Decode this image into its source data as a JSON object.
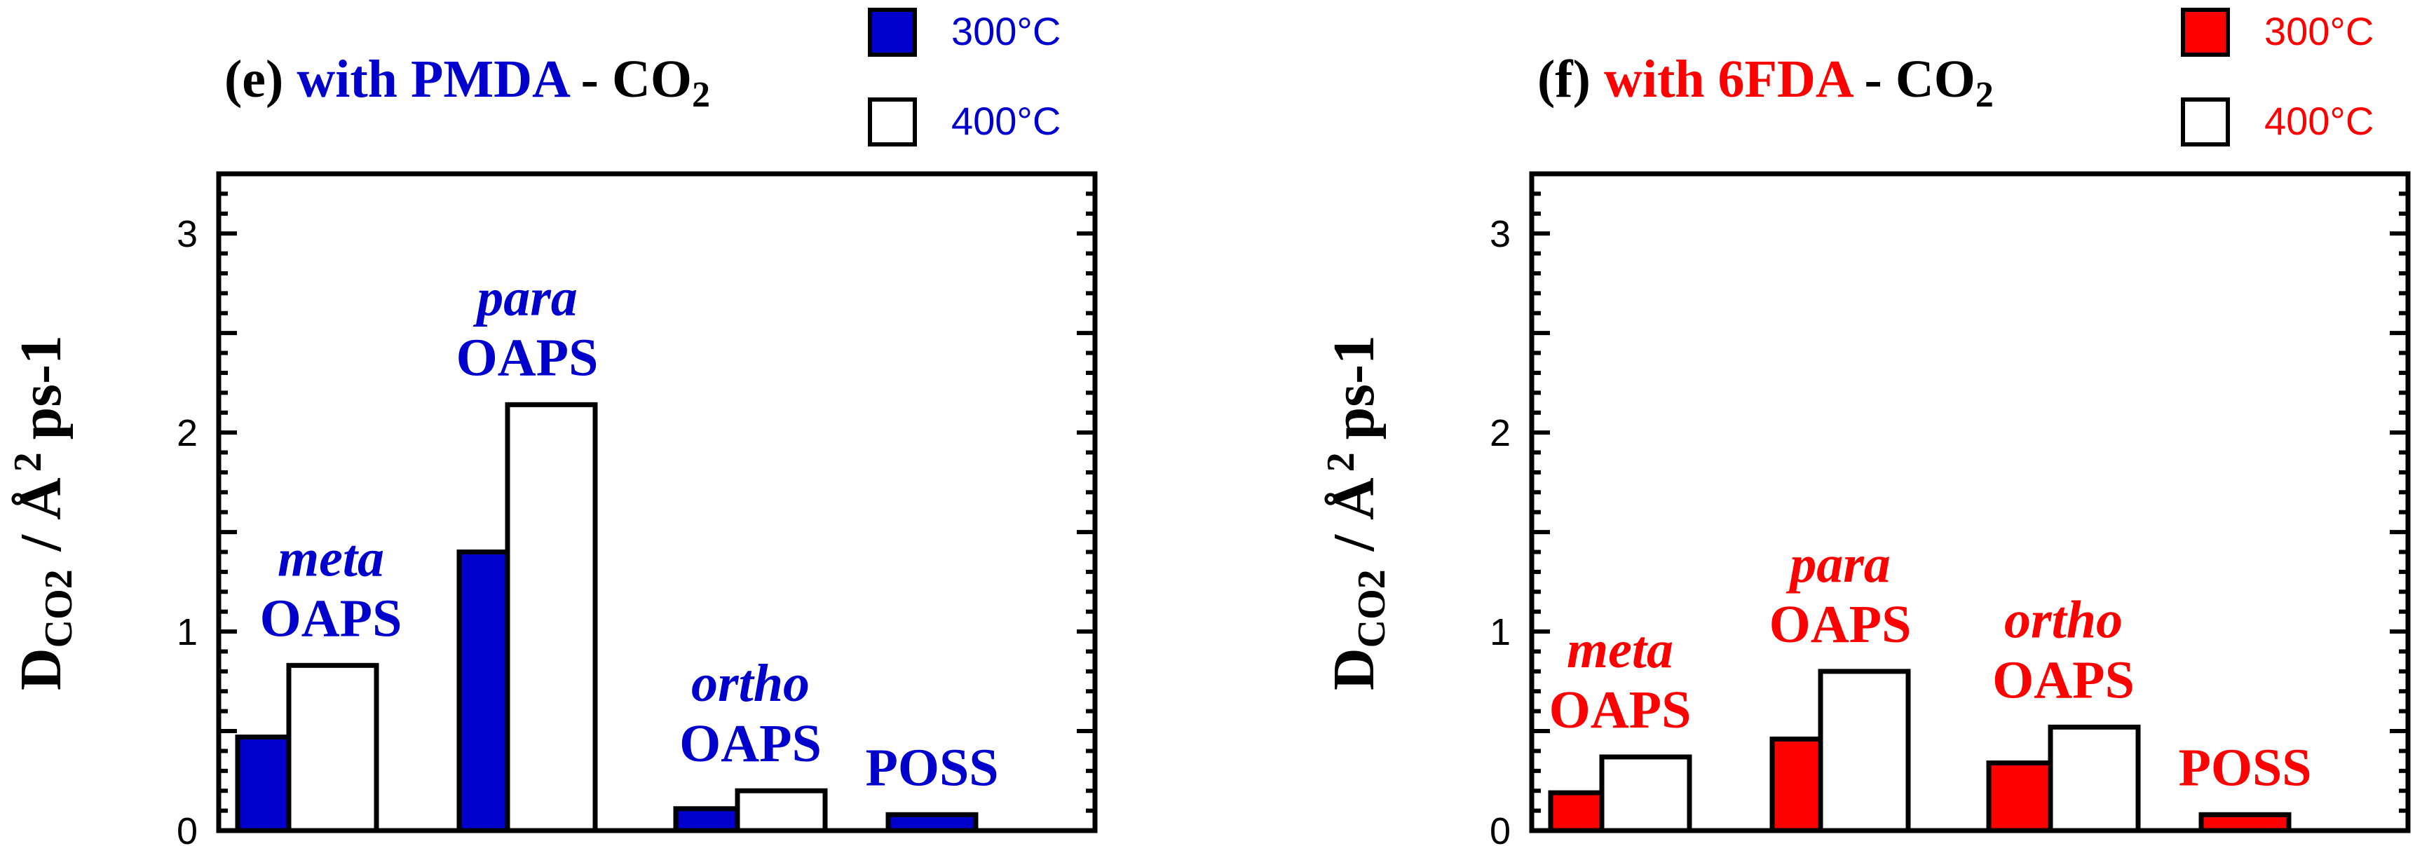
{
  "chart_data": [
    {
      "type": "bar",
      "panel_label": "(e)",
      "title_prefix": "with",
      "title_agent": "PMDA",
      "title_sep": "-",
      "title_gas": "CO",
      "title_gas_sub": "2",
      "ylabel_main": "D",
      "ylabel_sub": "CO2",
      "ylabel_unit": "/ Å",
      "ylabel_sup": "2",
      "ylabel_rest": "ps-1",
      "ylim": [
        0,
        3.3
      ],
      "yticks": [
        0,
        1,
        2,
        3
      ],
      "ytick_labels": [
        "0",
        "1",
        "2",
        "3"
      ],
      "accent_color": "#0000cc",
      "categories": [
        {
          "italic": "meta",
          "name": "OAPS"
        },
        {
          "italic": "para",
          "name": "OAPS"
        },
        {
          "italic": "ortho",
          "name": "OAPS"
        },
        {
          "italic": "",
          "name": "POSS"
        }
      ],
      "series": [
        {
          "name": "300°C",
          "fill": "#0000cc",
          "values": [
            0.47,
            1.4,
            0.11,
            0.08
          ]
        },
        {
          "name": "400°C",
          "fill": "#ffffff",
          "values": [
            0.83,
            2.14,
            0.2,
            null
          ]
        }
      ]
    },
    {
      "type": "bar",
      "panel_label": "(f)",
      "title_prefix": "with",
      "title_agent": "6FDA",
      "title_sep": "-",
      "title_gas": "CO",
      "title_gas_sub": "2",
      "ylabel_main": "D",
      "ylabel_sub": "CO2",
      "ylabel_unit": "/ Å",
      "ylabel_sup": "2",
      "ylabel_rest": "ps-1",
      "ylim": [
        0,
        3.3
      ],
      "yticks": [
        0,
        1,
        2,
        3
      ],
      "ytick_labels": [
        "0",
        "1",
        "2",
        "3"
      ],
      "accent_color": "#ff0000",
      "categories": [
        {
          "italic": "meta",
          "name": "OAPS"
        },
        {
          "italic": "para",
          "name": "OAPS"
        },
        {
          "italic": "ortho",
          "name": "OAPS"
        },
        {
          "italic": "",
          "name": "POSS"
        }
      ],
      "series": [
        {
          "name": "300°C",
          "fill": "#ff0000",
          "values": [
            0.19,
            0.46,
            0.34,
            0.08
          ]
        },
        {
          "name": "400°C",
          "fill": "#ffffff",
          "values": [
            0.37,
            0.8,
            0.52,
            null
          ]
        }
      ]
    }
  ]
}
